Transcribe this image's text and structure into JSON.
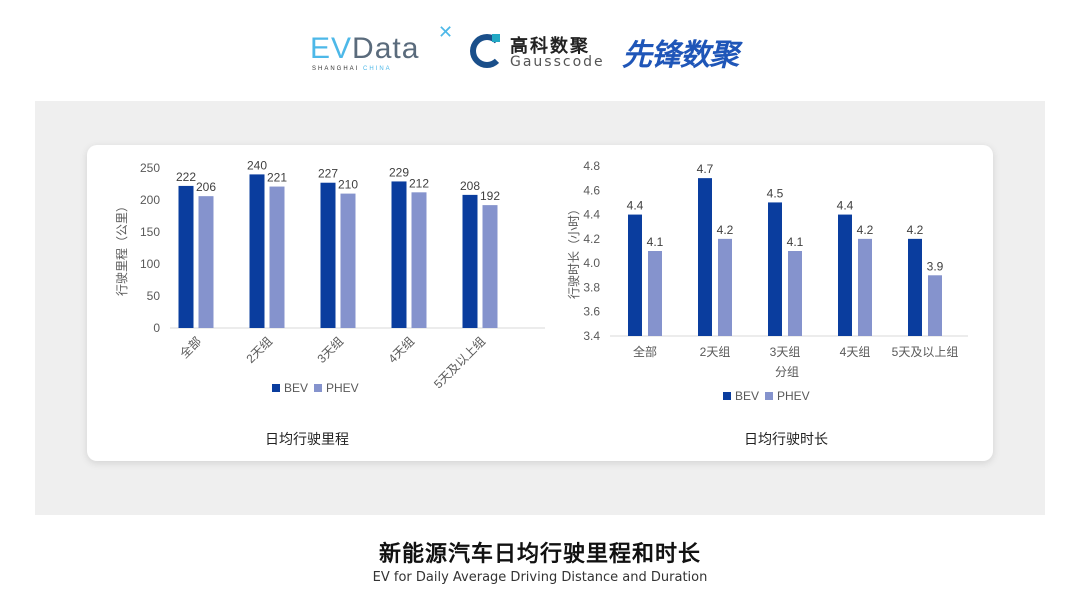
{
  "logos": {
    "evdata": {
      "text": "EVData",
      "sub_a": "SHANGHAI",
      "sub_b": "CHINA"
    },
    "gausscode": {
      "cn": "高科数聚",
      "en": "Gausscode"
    },
    "xianfeng": {
      "text": "先锋数聚"
    }
  },
  "colors": {
    "BEV": "#0a3d9e",
    "PHEV": "#8593cd",
    "panel": "#efefef"
  },
  "chart_data": [
    {
      "type": "bar",
      "title": "日均行驶里程",
      "ylabel": "行驶里程（公里）",
      "xlabel": "",
      "ylim": [
        0,
        250
      ],
      "yticks": [
        0,
        50,
        100,
        150,
        200,
        250
      ],
      "categories": [
        "全部",
        "2天组",
        "3天组",
        "4天组",
        "5天及以上组"
      ],
      "series": [
        {
          "name": "BEV",
          "values": [
            222,
            240,
            227,
            229,
            208
          ]
        },
        {
          "name": "PHEV",
          "values": [
            206,
            221,
            210,
            212,
            192
          ]
        }
      ],
      "legend": "bottom",
      "grid": false
    },
    {
      "type": "bar",
      "title": "日均行驶时长",
      "ylabel": "行驶时长（小时）",
      "xlabel": "分组",
      "ylim": [
        3.4,
        4.8
      ],
      "yticks": [
        "3.4",
        "3.6",
        "3.8",
        "4.0",
        "4.2",
        "4.4",
        "4.6",
        "4.8"
      ],
      "categories": [
        "全部",
        "2天组",
        "3天组",
        "4天组",
        "5天及以上组"
      ],
      "series": [
        {
          "name": "BEV",
          "values": [
            4.4,
            4.7,
            4.5,
            4.4,
            4.2
          ]
        },
        {
          "name": "PHEV",
          "values": [
            4.1,
            4.2,
            4.1,
            4.2,
            3.9
          ]
        }
      ],
      "legend": "bottom",
      "grid": false
    }
  ],
  "footer": {
    "title_cn": "新能源汽车日均行驶里程和时长",
    "title_en": "EV for Daily Average Driving Distance and Duration"
  }
}
